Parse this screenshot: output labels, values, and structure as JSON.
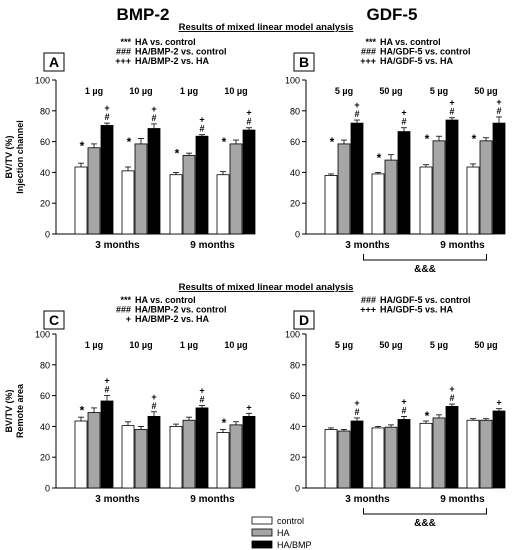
{
  "column_titles": [
    "BMP-2",
    "GDF-5"
  ],
  "section_titles": [
    "Results of mixed linear model analysis",
    "Results of mixed linear model analysis"
  ],
  "legend": [
    {
      "label": "control",
      "color": "#ffffff"
    },
    {
      "label": "HA",
      "color": "#a6a6a6"
    },
    {
      "label": "HA/BMP",
      "color": "#000000"
    }
  ],
  "chart_data": [
    {
      "panel": "A",
      "type": "bar",
      "ylabel_lines": [
        "BV/TV (%)",
        "Injection channel"
      ],
      "ylim": [
        0,
        100
      ],
      "yticks": [
        0,
        20,
        40,
        60,
        80,
        100
      ],
      "stats_legend": [
        {
          "sym": "***",
          "text": "HA vs. control"
        },
        {
          "sym": "###",
          "text": "HA/BMP-2 vs. control"
        },
        {
          "sym": "+++",
          "text": "HA/BMP-2 vs. HA"
        }
      ],
      "dose_labels": [
        "1 µg",
        "10 µg",
        "1 µg",
        "10 µg"
      ],
      "time_labels": [
        "3 months",
        "9 months"
      ],
      "series": [
        {
          "name": "control",
          "values": [
            43.5,
            41,
            38.5,
            38.5
          ],
          "errors": [
            2.5,
            2.5,
            1.5,
            2
          ]
        },
        {
          "name": "HA",
          "values": [
            56,
            58.5,
            51,
            58.5
          ],
          "errors": [
            2.5,
            3.5,
            1.5,
            2.5
          ]
        },
        {
          "name": "HA/BMP",
          "values": [
            70.5,
            68.5,
            63.5,
            67.5
          ],
          "errors": [
            1.5,
            3,
            1,
            1.5
          ]
        }
      ],
      "sig_marks": [
        {
          "group": 0,
          "bar": 1,
          "sym": "*"
        },
        {
          "group": 0,
          "bar": 2,
          "sym": "#+"
        },
        {
          "group": 1,
          "bar": 1,
          "sym": "*"
        },
        {
          "group": 1,
          "bar": 2,
          "sym": "#+"
        },
        {
          "group": 2,
          "bar": 1,
          "sym": "*"
        },
        {
          "group": 2,
          "bar": 2,
          "sym": "#+"
        },
        {
          "group": 3,
          "bar": 1,
          "sym": "*"
        },
        {
          "group": 3,
          "bar": 2,
          "sym": "#+"
        }
      ],
      "bracket_label": ""
    },
    {
      "panel": "B",
      "type": "bar",
      "ylabel_lines": [],
      "ylim": [
        0,
        100
      ],
      "yticks": [
        0,
        20,
        40,
        60,
        80,
        100
      ],
      "stats_legend": [
        {
          "sym": "***",
          "text": "HA vs. control"
        },
        {
          "sym": "###",
          "text": "HA/GDF-5 vs. control"
        },
        {
          "sym": "+++",
          "text": "HA/GDF-5 vs. HA"
        }
      ],
      "dose_labels": [
        "5 µg",
        "50 µg",
        "5 µg",
        "50 µg"
      ],
      "time_labels": [
        "3 months",
        "9 months"
      ],
      "series": [
        {
          "name": "control",
          "values": [
            38,
            39,
            43.5,
            43.5
          ],
          "errors": [
            1,
            1,
            1.5,
            2
          ]
        },
        {
          "name": "HA",
          "values": [
            58.5,
            48,
            60.5,
            60.5
          ],
          "errors": [
            2.5,
            3.5,
            3,
            2
          ]
        },
        {
          "name": "HA/BMP",
          "values": [
            72,
            66.5,
            74,
            72
          ],
          "errors": [
            2,
            2.5,
            1.5,
            4
          ]
        }
      ],
      "sig_marks": [
        {
          "group": 0,
          "bar": 1,
          "sym": "*"
        },
        {
          "group": 0,
          "bar": 2,
          "sym": "#+"
        },
        {
          "group": 1,
          "bar": 1,
          "sym": "*"
        },
        {
          "group": 1,
          "bar": 2,
          "sym": "#+"
        },
        {
          "group": 2,
          "bar": 1,
          "sym": "*"
        },
        {
          "group": 2,
          "bar": 2,
          "sym": "#+"
        },
        {
          "group": 3,
          "bar": 1,
          "sym": "*"
        },
        {
          "group": 3,
          "bar": 2,
          "sym": "#+"
        }
      ],
      "bracket_label": "&&&"
    },
    {
      "panel": "C",
      "type": "bar",
      "ylabel_lines": [
        "BV/TV (%)",
        "Remote area"
      ],
      "ylim": [
        0,
        100
      ],
      "yticks": [
        0,
        20,
        40,
        60,
        80,
        100
      ],
      "stats_legend": [
        {
          "sym": "***",
          "text": "HA vs. control"
        },
        {
          "sym": "###",
          "text": "HA/BMP-2 vs. control"
        },
        {
          "sym": "+",
          "text": "HA/BMP-2 vs. HA"
        }
      ],
      "dose_labels": [
        "1 µg",
        "10 µg",
        "1 µg",
        "10 µg"
      ],
      "time_labels": [
        "3 months",
        "9 months"
      ],
      "series": [
        {
          "name": "control",
          "values": [
            43.5,
            40.5,
            40,
            36
          ],
          "errors": [
            2.5,
            2.5,
            1.5,
            2
          ]
        },
        {
          "name": "HA",
          "values": [
            49,
            38,
            44,
            41
          ],
          "errors": [
            3,
            2,
            2,
            2
          ]
        },
        {
          "name": "HA/BMP",
          "values": [
            56.5,
            46.5,
            52,
            46.5
          ],
          "errors": [
            3.5,
            3,
            1.5,
            2
          ]
        }
      ],
      "sig_marks": [
        {
          "group": 0,
          "bar": 1,
          "sym": "*"
        },
        {
          "group": 0,
          "bar": 2,
          "sym": "#+"
        },
        {
          "group": 1,
          "bar": 2,
          "sym": "#+"
        },
        {
          "group": 2,
          "bar": 2,
          "sym": "#+"
        },
        {
          "group": 3,
          "bar": 1,
          "sym": "*"
        },
        {
          "group": 3,
          "bar": 2,
          "sym": "+"
        }
      ],
      "bracket_label": ""
    },
    {
      "panel": "D",
      "type": "bar",
      "ylabel_lines": [],
      "ylim": [
        0,
        100
      ],
      "yticks": [
        0,
        20,
        40,
        60,
        80,
        100
      ],
      "stats_legend": [
        {
          "sym": "###",
          "text": "HA/GDF-5 vs. control"
        },
        {
          "sym": "+++",
          "text": "HA/GDF-5 vs. HA"
        }
      ],
      "dose_labels": [
        "5 µg",
        "50 µg",
        "5 µg",
        "50 µg"
      ],
      "time_labels": [
        "3 months",
        "9 months"
      ],
      "series": [
        {
          "name": "control",
          "values": [
            38,
            39,
            42,
            44
          ],
          "errors": [
            1,
            1,
            1.5,
            1
          ]
        },
        {
          "name": "HA",
          "values": [
            37,
            39.5,
            45.5,
            44
          ],
          "errors": [
            1,
            1.5,
            2,
            1
          ]
        },
        {
          "name": "HA/BMP",
          "values": [
            43.5,
            44.5,
            53,
            50
          ],
          "errors": [
            2,
            2,
            1.5,
            1.5
          ]
        }
      ],
      "sig_marks": [
        {
          "group": 0,
          "bar": 2,
          "sym": "#+"
        },
        {
          "group": 1,
          "bar": 2,
          "sym": "#+"
        },
        {
          "group": 2,
          "bar": 1,
          "sym": "*"
        },
        {
          "group": 2,
          "bar": 2,
          "sym": "#+"
        },
        {
          "group": 3,
          "bar": 2,
          "sym": "+"
        }
      ],
      "bracket_label": "&&&"
    }
  ]
}
